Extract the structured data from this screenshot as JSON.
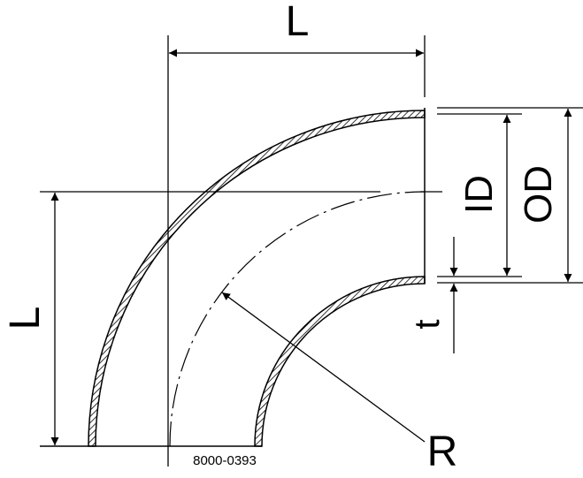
{
  "labels": {
    "length_top": "L",
    "length_left": "L",
    "inner_diameter": "ID",
    "outer_diameter": "OD",
    "wall_thickness": "t",
    "radius": "R",
    "drawing_number": "8000-0393"
  },
  "colors": {
    "line": "#000000",
    "background": "#ffffff"
  }
}
